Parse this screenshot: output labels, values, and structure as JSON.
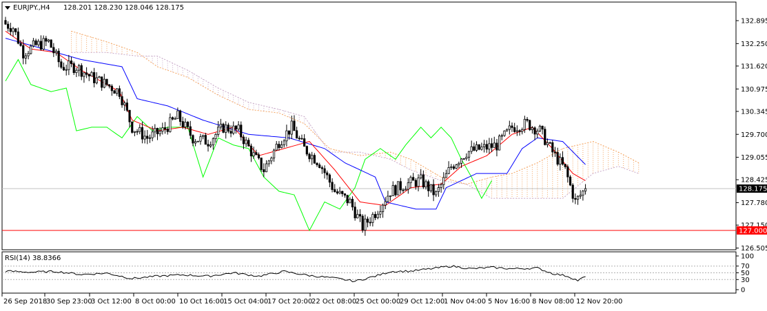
{
  "header": {
    "symbol": "EURJPY.,H4",
    "ohlc": "128.201 128.230 128.046 128.175",
    "arrow": "dropdown-triangle"
  },
  "rsi_panel": {
    "label": "RSI(14) 38.8366"
  },
  "colors": {
    "background": "#ffffff",
    "candles": "#000000",
    "tenkan": "#ff0000",
    "kijun": "#0000ff",
    "chikou": "#00ff00",
    "kumo_up": "#f4a460",
    "kumo_down": "#c8a8c8",
    "level_line": "#ff0000",
    "current_price_bg": "#000000",
    "level_label_bg": "#ff0000"
  },
  "chart_data": {
    "type": "candlestick",
    "symbol": "EURJPY.",
    "timeframe": "H4",
    "y_ticks": [
      "132.895",
      "132.250",
      "131.620",
      "130.975",
      "130.345",
      "129.700",
      "129.055",
      "128.425",
      "127.780",
      "127.150",
      "126.505"
    ],
    "ylim": [
      126.35,
      133.3
    ],
    "current_price": "128.175",
    "horizontal_level": "127.000",
    "x_ticks": [
      "26 Sep 2018",
      "30 Sep 23:00",
      "3 Oct 12:00",
      "8 Oct 00:00",
      "10 Oct 16:00",
      "15 Oct 04:00",
      "17 Oct 20:00",
      "22 Oct 08:00",
      "25 Oct 00:00",
      "29 Oct 12:00",
      "1 Nov 04:00",
      "5 Nov 16:00",
      "8 Nov 08:00",
      "12 Nov 20:00"
    ],
    "candle_anchors": [
      {
        "i": 0,
        "price": 132.8
      },
      {
        "i": 3,
        "price": 132.7
      },
      {
        "i": 7,
        "price": 132.0
      },
      {
        "i": 12,
        "price": 132.2
      },
      {
        "i": 17,
        "price": 132.3
      },
      {
        "i": 22,
        "price": 131.6
      },
      {
        "i": 28,
        "price": 131.6
      },
      {
        "i": 34,
        "price": 131.3
      },
      {
        "i": 40,
        "price": 131.1
      },
      {
        "i": 45,
        "price": 130.9
      },
      {
        "i": 50,
        "price": 129.9
      },
      {
        "i": 56,
        "price": 129.6
      },
      {
        "i": 62,
        "price": 129.8
      },
      {
        "i": 68,
        "price": 130.2
      },
      {
        "i": 74,
        "price": 129.6
      },
      {
        "i": 80,
        "price": 129.5
      },
      {
        "i": 86,
        "price": 129.9
      },
      {
        "i": 92,
        "price": 129.8
      },
      {
        "i": 98,
        "price": 129.1
      },
      {
        "i": 102,
        "price": 128.7
      },
      {
        "i": 108,
        "price": 129.5
      },
      {
        "i": 113,
        "price": 129.9
      },
      {
        "i": 118,
        "price": 129.3
      },
      {
        "i": 124,
        "price": 128.9
      },
      {
        "i": 130,
        "price": 128.1
      },
      {
        "i": 136,
        "price": 127.8
      },
      {
        "i": 141,
        "price": 127.1
      },
      {
        "i": 146,
        "price": 127.5
      },
      {
        "i": 152,
        "price": 128.1
      },
      {
        "i": 158,
        "price": 128.3
      },
      {
        "i": 164,
        "price": 128.4
      },
      {
        "i": 170,
        "price": 128.0
      },
      {
        "i": 176,
        "price": 128.8
      },
      {
        "i": 182,
        "price": 129.2
      },
      {
        "i": 188,
        "price": 129.3
      },
      {
        "i": 194,
        "price": 129.4
      },
      {
        "i": 200,
        "price": 129.9
      },
      {
        "i": 206,
        "price": 130.0
      },
      {
        "i": 211,
        "price": 129.8
      },
      {
        "i": 216,
        "price": 129.2
      },
      {
        "i": 221,
        "price": 128.7
      },
      {
        "i": 225,
        "price": 127.8
      },
      {
        "i": 229,
        "price": 128.175
      }
    ],
    "tenkan_anchors": [
      {
        "i": 0,
        "price": 132.6
      },
      {
        "i": 10,
        "price": 132.1
      },
      {
        "i": 20,
        "price": 132.0
      },
      {
        "i": 30,
        "price": 131.5
      },
      {
        "i": 45,
        "price": 130.9
      },
      {
        "i": 50,
        "price": 130.1
      },
      {
        "i": 60,
        "price": 129.8
      },
      {
        "i": 70,
        "price": 129.9
      },
      {
        "i": 80,
        "price": 129.7
      },
      {
        "i": 90,
        "price": 129.9
      },
      {
        "i": 100,
        "price": 129.1
      },
      {
        "i": 110,
        "price": 129.3
      },
      {
        "i": 120,
        "price": 129.5
      },
      {
        "i": 130,
        "price": 128.7
      },
      {
        "i": 140,
        "price": 127.8
      },
      {
        "i": 150,
        "price": 127.7
      },
      {
        "i": 160,
        "price": 128.2
      },
      {
        "i": 172,
        "price": 128.3
      },
      {
        "i": 180,
        "price": 128.8
      },
      {
        "i": 190,
        "price": 129.1
      },
      {
        "i": 200,
        "price": 129.7
      },
      {
        "i": 208,
        "price": 129.9
      },
      {
        "i": 216,
        "price": 129.3
      },
      {
        "i": 224,
        "price": 128.6
      },
      {
        "i": 229,
        "price": 128.4
      }
    ],
    "kijun_anchors": [
      {
        "i": 0,
        "price": 132.4
      },
      {
        "i": 15,
        "price": 132.1
      },
      {
        "i": 30,
        "price": 131.8
      },
      {
        "i": 46,
        "price": 131.6
      },
      {
        "i": 52,
        "price": 130.7
      },
      {
        "i": 64,
        "price": 130.5
      },
      {
        "i": 78,
        "price": 130.1
      },
      {
        "i": 96,
        "price": 129.7
      },
      {
        "i": 112,
        "price": 129.6
      },
      {
        "i": 126,
        "price": 129.3
      },
      {
        "i": 134,
        "price": 128.9
      },
      {
        "i": 146,
        "price": 128.5
      },
      {
        "i": 150,
        "price": 127.8
      },
      {
        "i": 162,
        "price": 127.6
      },
      {
        "i": 170,
        "price": 127.6
      },
      {
        "i": 174,
        "price": 128.2
      },
      {
        "i": 186,
        "price": 128.6
      },
      {
        "i": 198,
        "price": 128.6
      },
      {
        "i": 204,
        "price": 129.3
      },
      {
        "i": 210,
        "price": 129.6
      },
      {
        "i": 220,
        "price": 129.5
      },
      {
        "i": 229,
        "price": 128.85
      }
    ],
    "chikou_anchors": [
      {
        "i": 0,
        "price": 131.2
      },
      {
        "i": 5,
        "price": 131.8
      },
      {
        "i": 10,
        "price": 131.1
      },
      {
        "i": 18,
        "price": 130.9
      },
      {
        "i": 24,
        "price": 131.0
      },
      {
        "i": 28,
        "price": 129.8
      },
      {
        "i": 34,
        "price": 129.9
      },
      {
        "i": 40,
        "price": 129.9
      },
      {
        "i": 46,
        "price": 129.6
      },
      {
        "i": 52,
        "price": 130.2
      },
      {
        "i": 58,
        "price": 129.8
      },
      {
        "i": 64,
        "price": 129.9
      },
      {
        "i": 72,
        "price": 129.9
      },
      {
        "i": 78,
        "price": 128.5
      },
      {
        "i": 84,
        "price": 129.6
      },
      {
        "i": 90,
        "price": 129.4
      },
      {
        "i": 96,
        "price": 129.3
      },
      {
        "i": 102,
        "price": 128.5
      },
      {
        "i": 108,
        "price": 128.1
      },
      {
        "i": 114,
        "price": 128.0
      },
      {
        "i": 120,
        "price": 127.0
      },
      {
        "i": 126,
        "price": 127.8
      },
      {
        "i": 132,
        "price": 127.6
      },
      {
        "i": 138,
        "price": 128.2
      },
      {
        "i": 142,
        "price": 129.0
      },
      {
        "i": 148,
        "price": 129.3
      },
      {
        "i": 154,
        "price": 129.0
      },
      {
        "i": 158,
        "price": 129.4
      },
      {
        "i": 164,
        "price": 129.9
      },
      {
        "i": 168,
        "price": 129.6
      },
      {
        "i": 172,
        "price": 129.9
      },
      {
        "i": 176,
        "price": 129.6
      },
      {
        "i": 180,
        "price": 129.0
      },
      {
        "i": 184,
        "price": 128.5
      },
      {
        "i": 188,
        "price": 127.9
      },
      {
        "i": 192,
        "price": 128.4
      }
    ],
    "span_a_anchors": [
      {
        "i": 26,
        "price": 132.6
      },
      {
        "i": 40,
        "price": 132.3
      },
      {
        "i": 52,
        "price": 132.0
      },
      {
        "i": 60,
        "price": 131.6
      },
      {
        "i": 72,
        "price": 131.3
      },
      {
        "i": 84,
        "price": 130.8
      },
      {
        "i": 96,
        "price": 130.4
      },
      {
        "i": 108,
        "price": 130.3
      },
      {
        "i": 118,
        "price": 130.0
      },
      {
        "i": 128,
        "price": 129.3
      },
      {
        "i": 140,
        "price": 129.1
      },
      {
        "i": 152,
        "price": 129.2
      },
      {
        "i": 160,
        "price": 129.0
      },
      {
        "i": 172,
        "price": 128.5
      },
      {
        "i": 182,
        "price": 128.3
      },
      {
        "i": 192,
        "price": 128.5
      },
      {
        "i": 200,
        "price": 128.6
      },
      {
        "i": 210,
        "price": 128.9
      },
      {
        "i": 220,
        "price": 129.3
      },
      {
        "i": 232,
        "price": 129.5
      },
      {
        "i": 242,
        "price": 129.2
      },
      {
        "i": 250,
        "price": 128.9
      }
    ],
    "span_b_anchors": [
      {
        "i": 26,
        "price": 132.0
      },
      {
        "i": 40,
        "price": 132.0
      },
      {
        "i": 52,
        "price": 131.9
      },
      {
        "i": 60,
        "price": 131.9
      },
      {
        "i": 72,
        "price": 131.5
      },
      {
        "i": 84,
        "price": 131.0
      },
      {
        "i": 96,
        "price": 130.6
      },
      {
        "i": 108,
        "price": 130.4
      },
      {
        "i": 118,
        "price": 130.2
      },
      {
        "i": 128,
        "price": 129.2
      },
      {
        "i": 140,
        "price": 129.2
      },
      {
        "i": 152,
        "price": 129.0
      },
      {
        "i": 160,
        "price": 128.7
      },
      {
        "i": 172,
        "price": 128.4
      },
      {
        "i": 182,
        "price": 128.3
      },
      {
        "i": 192,
        "price": 127.9
      },
      {
        "i": 200,
        "price": 127.9
      },
      {
        "i": 210,
        "price": 127.9
      },
      {
        "i": 220,
        "price": 127.9
      },
      {
        "i": 232,
        "price": 128.6
      },
      {
        "i": 242,
        "price": 128.8
      },
      {
        "i": 250,
        "price": 128.6
      }
    ],
    "rsi": {
      "value": "38.8366",
      "y_ticks": [
        "100",
        "70",
        "50",
        "30",
        "0"
      ],
      "levels": [
        70,
        50,
        30
      ],
      "anchors": [
        {
          "i": 0,
          "v": 55
        },
        {
          "i": 10,
          "v": 52
        },
        {
          "i": 20,
          "v": 54
        },
        {
          "i": 30,
          "v": 45
        },
        {
          "i": 40,
          "v": 49
        },
        {
          "i": 50,
          "v": 33
        },
        {
          "i": 60,
          "v": 40
        },
        {
          "i": 70,
          "v": 44
        },
        {
          "i": 80,
          "v": 40
        },
        {
          "i": 90,
          "v": 50
        },
        {
          "i": 100,
          "v": 40
        },
        {
          "i": 110,
          "v": 54
        },
        {
          "i": 120,
          "v": 42
        },
        {
          "i": 130,
          "v": 34
        },
        {
          "i": 138,
          "v": 25
        },
        {
          "i": 146,
          "v": 40
        },
        {
          "i": 152,
          "v": 54
        },
        {
          "i": 160,
          "v": 55
        },
        {
          "i": 168,
          "v": 62
        },
        {
          "i": 176,
          "v": 70
        },
        {
          "i": 184,
          "v": 62
        },
        {
          "i": 192,
          "v": 66
        },
        {
          "i": 200,
          "v": 62
        },
        {
          "i": 210,
          "v": 64
        },
        {
          "i": 216,
          "v": 48
        },
        {
          "i": 222,
          "v": 40
        },
        {
          "i": 226,
          "v": 27
        },
        {
          "i": 229,
          "v": 38.8
        }
      ]
    }
  }
}
